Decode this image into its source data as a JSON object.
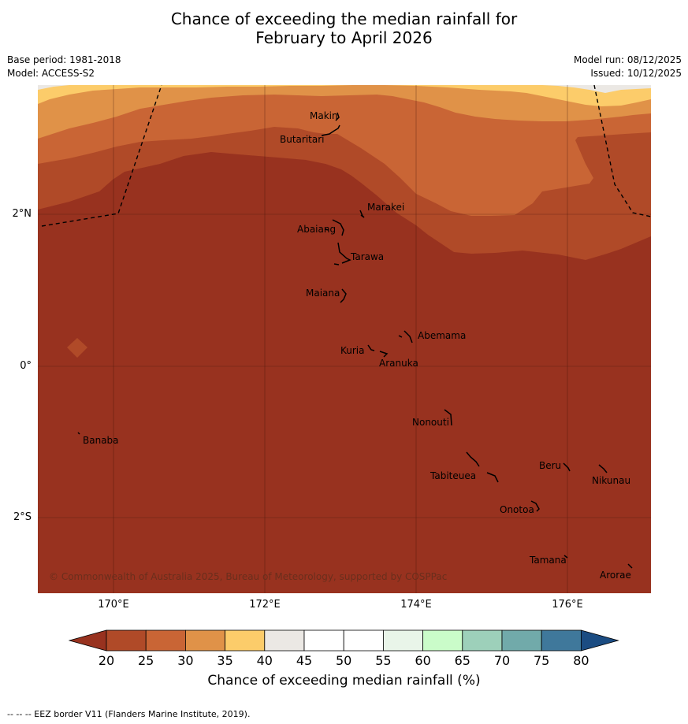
{
  "title_line1": "Chance of exceeding the median rainfall for",
  "title_line2": "February to April 2026",
  "base_period": "Base period: 1981-2018",
  "model": "Model: ACCESS-S2",
  "model_run": "Model run: 08/12/2025",
  "issued": "Issued: 10/12/2025",
  "lat_labels": [
    "2°N",
    "0°",
    "2°S"
  ],
  "lon_labels": [
    "170°E",
    "172°E",
    "174°E",
    "176°E"
  ],
  "islands": [
    "Makin",
    "Butaritari",
    "Marakei",
    "Abaiang",
    "Tarawa",
    "Maiana",
    "Abemama",
    "Kuria",
    "Aranuka",
    "Nonouti",
    "Banaba",
    "Beru",
    "Nikunau",
    "Tabiteuea",
    "Onotoa",
    "Tamana",
    "Arorae"
  ],
  "copyright": "© Commonwealth of Australia 2025, Bureau of Meteorology, supported by COSPPac",
  "colorbar": {
    "ticks": [
      "20",
      "25",
      "30",
      "35",
      "40",
      "45",
      "50",
      "55",
      "60",
      "65",
      "70",
      "75",
      "80"
    ],
    "colors": [
      "#b04a28",
      "#c96535",
      "#e09248",
      "#fccc6a",
      "#ebe8e4",
      "#ffffff",
      "#ffffff",
      "#e9f5e9",
      "#cafcc9",
      "#9dd0ba",
      "#71aaaa",
      "#3f789b"
    ],
    "low_extend_color": "#98321f",
    "high_extend_color": "#1b4c82",
    "title": "Chance of exceeding median rainfall (%)"
  },
  "footer": "--  --  -- EEZ border V11 (Flanders Marine Institute, 2019)."
}
